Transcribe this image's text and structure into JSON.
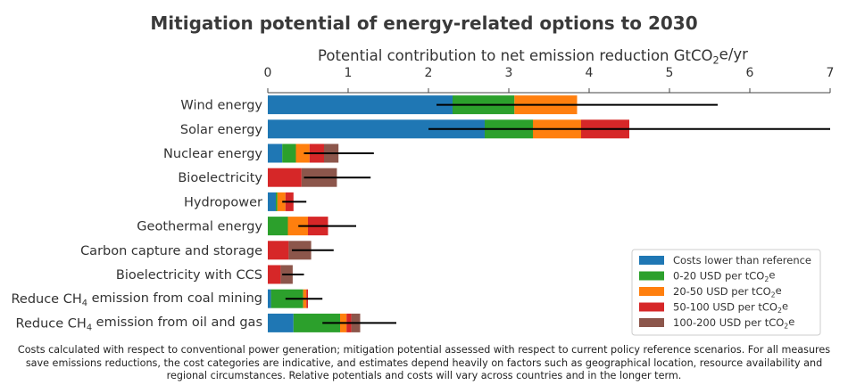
{
  "chart_data": {
    "type": "bar",
    "orientation": "horizontal",
    "stacked": true,
    "title": "Mitigation potential of energy-related options to 2030",
    "xlabel": {
      "prefix": "Potential contribution to net emission reduction GtCO",
      "sub": "2",
      "suffix": "e/yr"
    },
    "xlim": [
      0,
      7
    ],
    "xticks": [
      "0",
      "1",
      "2",
      "3",
      "4",
      "5",
      "6",
      "7"
    ],
    "x_axis_position": "top",
    "grid": false,
    "legend_position": "bottom-right",
    "categories": [
      {
        "prefix": "Wind energy",
        "sub": "",
        "suffix": ""
      },
      {
        "prefix": "Solar energy",
        "sub": "",
        "suffix": ""
      },
      {
        "prefix": "Nuclear energy",
        "sub": "",
        "suffix": ""
      },
      {
        "prefix": "Bioelectricity",
        "sub": "",
        "suffix": ""
      },
      {
        "prefix": "Hydropower",
        "sub": "",
        "suffix": ""
      },
      {
        "prefix": "Geothermal energy",
        "sub": "",
        "suffix": ""
      },
      {
        "prefix": "Carbon capture and storage",
        "sub": "",
        "suffix": ""
      },
      {
        "prefix": "Bioelectricity with CCS",
        "sub": "",
        "suffix": ""
      },
      {
        "prefix": "Reduce CH",
        "sub": "4",
        "suffix": " emission from coal mining"
      },
      {
        "prefix": "Reduce CH",
        "sub": "4",
        "suffix": " emission from oil and gas"
      }
    ],
    "series": [
      {
        "name": {
          "prefix": "Costs lower than reference",
          "sub": "",
          "suffix": ""
        },
        "color": "#1f77b4",
        "values": [
          2.3,
          2.7,
          0.18,
          0,
          0.1,
          0,
          0,
          0,
          0.04,
          0.32
        ]
      },
      {
        "name": {
          "prefix": "0-20 USD per tCO",
          "sub": "2",
          "suffix": "e"
        },
        "color": "#2ca02c",
        "values": [
          0.77,
          0.6,
          0.17,
          0,
          0.02,
          0.25,
          0,
          0,
          0.4,
          0.58
        ]
      },
      {
        "name": {
          "prefix": "20-50 USD per tCO",
          "sub": "2",
          "suffix": "e"
        },
        "color": "#ff7f0e",
        "values": [
          0.78,
          0.6,
          0.17,
          0,
          0.1,
          0.25,
          0,
          0,
          0.04,
          0.08
        ]
      },
      {
        "name": {
          "prefix": "50-100 USD per tCO",
          "sub": "2",
          "suffix": "e"
        },
        "color": "#d62728",
        "values": [
          0,
          0.6,
          0.18,
          0.42,
          0.1,
          0.25,
          0.26,
          0.16,
          0.02,
          0.06
        ]
      },
      {
        "name": {
          "prefix": "100-200 USD per tCO",
          "sub": "2",
          "suffix": "e"
        },
        "color": "#8c564b",
        "values": [
          0,
          0,
          0.18,
          0.44,
          0,
          0,
          0.28,
          0.15,
          0,
          0.11
        ]
      }
    ],
    "ranges": [
      [
        2.1,
        5.6
      ],
      [
        2.0,
        7.0
      ],
      [
        0.45,
        1.32
      ],
      [
        0.45,
        1.28
      ],
      [
        0.18,
        0.48
      ],
      [
        0.38,
        1.1
      ],
      [
        0.3,
        0.82
      ],
      [
        0.18,
        0.45
      ],
      [
        0.22,
        0.68
      ],
      [
        0.68,
        1.6
      ]
    ]
  },
  "footnote": [
    "Costs calculated with respect to conventional power generation; mitigation potential assessed with respect to current policy reference scenarios. For all measures",
    "save emissions reductions, the cost categories are indicative, and estimates depend heavily on factors such as geographical location, resource availability and",
    "regional circumstances. Relative potentials and costs will vary across countries and in the longer term."
  ]
}
